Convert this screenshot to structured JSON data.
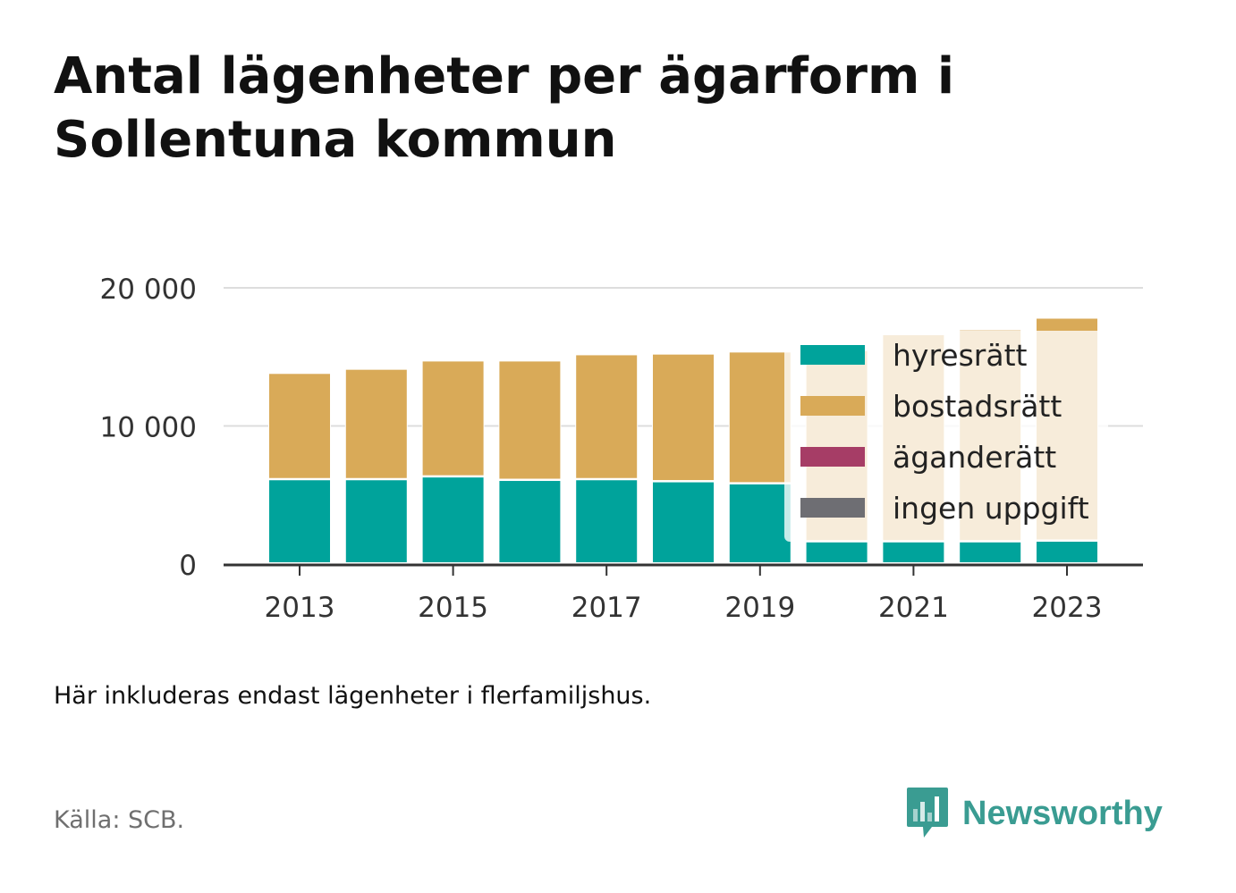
{
  "title_lines": [
    "Antal lägenheter per ägarform i",
    "Sollentuna kommun"
  ],
  "note": "Här inkluderas endast lägenheter i flerfamiljshus.",
  "source": "Källa: SCB.",
  "brand": {
    "name": "Newsworthy",
    "icon": "newsworthy-logo-icon",
    "color": "#3a9c92"
  },
  "chart_data": {
    "type": "bar",
    "stacked": true,
    "categories": [
      "2013",
      "2014",
      "2015",
      "2016",
      "2017",
      "2018",
      "2019",
      "2020",
      "2021",
      "2022",
      "2023"
    ],
    "x_tick_labels": [
      "2013",
      "2015",
      "2017",
      "2019",
      "2021",
      "2023"
    ],
    "y_ticks": [
      0,
      10000,
      20000
    ],
    "y_tick_labels": [
      "0",
      "10 000",
      "20 000"
    ],
    "ylim": [
      0,
      20000
    ],
    "grid": true,
    "legend_position": "right, overlapping latest bars",
    "series": [
      {
        "name": "hyresrätt",
        "color": "#00a39b",
        "values": [
          6100,
          6100,
          6300,
          6050,
          6100,
          5950,
          5800,
          1600,
          1600,
          1600,
          1650
        ]
      },
      {
        "name": "bostadsrätt",
        "color": "#d9aa58",
        "values": [
          7700,
          8000,
          8400,
          8650,
          9050,
          9250,
          9550,
          13850,
          15000,
          15350,
          16150
        ]
      },
      {
        "name": "äganderätt",
        "color": "#a63d66",
        "values": [
          0,
          0,
          0,
          0,
          0,
          0,
          0,
          0,
          0,
          0,
          0
        ]
      },
      {
        "name": "ingen uppgift",
        "color": "#6e6e73",
        "values": [
          0,
          0,
          0,
          0,
          0,
          0,
          0,
          0,
          0,
          0,
          0
        ]
      }
    ]
  }
}
